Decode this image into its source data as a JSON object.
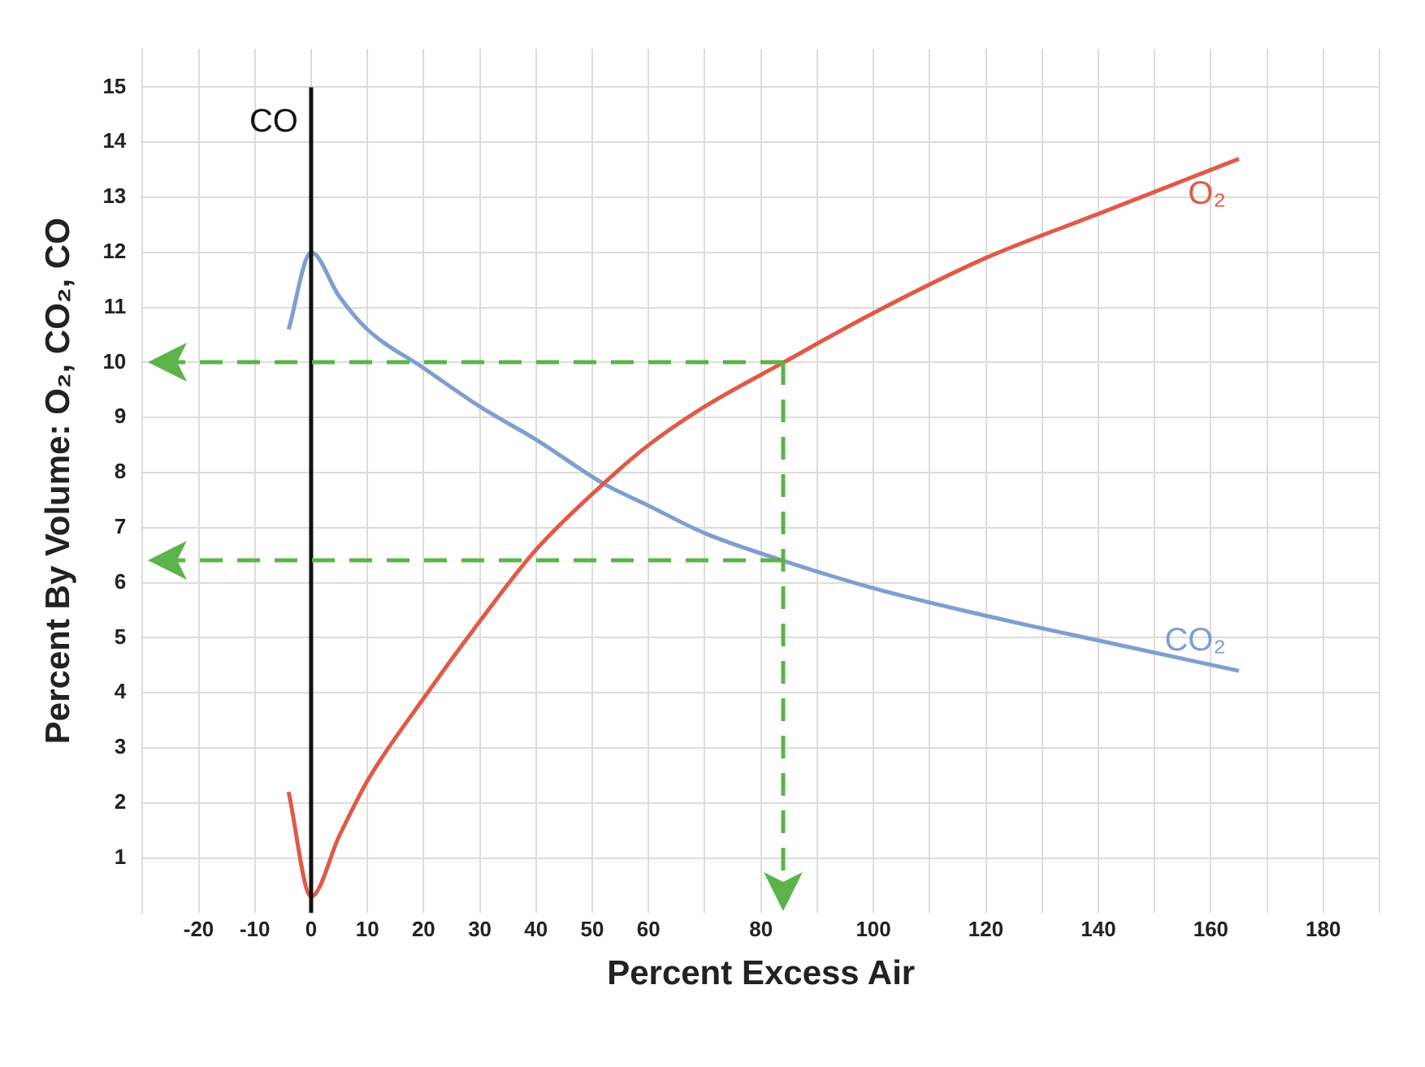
{
  "chart_data": {
    "type": "line",
    "xlabel": "Percent Excess Air",
    "ylabel": "Percent By Volume: O₂, CO₂, CO",
    "xlim": [
      -30,
      190
    ],
    "xticks": [
      {
        "value": -30,
        "label": null
      },
      -20,
      -10,
      0,
      10,
      20,
      30,
      40,
      50,
      60,
      {
        "value": 70,
        "label": null
      },
      80,
      {
        "value": 90,
        "label": null
      },
      100,
      {
        "value": 110,
        "label": null
      },
      120,
      {
        "value": 130,
        "label": null
      },
      140,
      {
        "value": 150,
        "label": null
      },
      160,
      {
        "value": 170,
        "label": null
      },
      180,
      {
        "value": 190,
        "label": null
      }
    ],
    "ylim": [
      0,
      15.7
    ],
    "yticks": [
      1,
      2,
      3,
      4,
      5,
      6,
      7,
      8,
      9,
      10,
      11,
      12,
      13,
      14,
      15
    ],
    "grid": true,
    "marker": "none",
    "series": [
      {
        "name": "CO",
        "color": "#111111",
        "x": [
          0,
          0
        ],
        "values": [
          0,
          15
        ]
      },
      {
        "name": "O₂",
        "color": "#e05a48",
        "x": [
          -4,
          0,
          5,
          10,
          20,
          30,
          40,
          52,
          60,
          70,
          84,
          100,
          120,
          140,
          165
        ],
        "values": [
          2.2,
          0.3,
          1.4,
          2.4,
          3.9,
          5.3,
          6.6,
          7.8,
          8.5,
          9.2,
          10,
          10.9,
          11.9,
          12.7,
          13.7
        ]
      },
      {
        "name": "CO₂",
        "color": "#7f9fd0",
        "x": [
          -4,
          0,
          5,
          10,
          20,
          30,
          40,
          52,
          60,
          70,
          84,
          100,
          120,
          140,
          165
        ],
        "values": [
          10.6,
          12,
          11.2,
          10.6,
          9.9,
          9.2,
          8.6,
          7.8,
          7.4,
          6.9,
          6.4,
          5.9,
          5.4,
          4.95,
          4.4
        ]
      }
    ]
  }
}
